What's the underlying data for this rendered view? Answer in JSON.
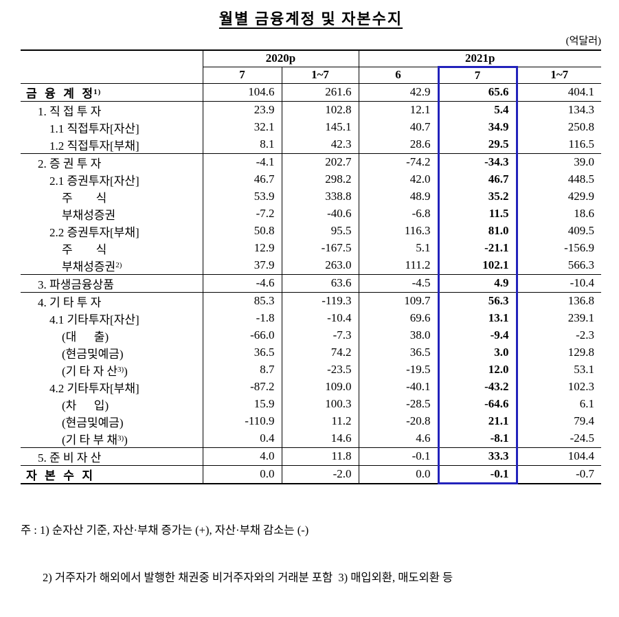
{
  "title": "월별 금융계정 및 자본수지",
  "unit_label": "(억달러)",
  "table": {
    "col_groups": [
      {
        "label": "2020p"
      },
      {
        "label": "2021p"
      }
    ],
    "sub_headers": [
      "7",
      "1~7",
      "6",
      "7",
      "1~7"
    ],
    "highlight_col": 3,
    "highlight_color": "#2222bb",
    "rows": [
      {
        "label": "금  융  계  정",
        "sup": "1)",
        "indent": 0,
        "bold": true,
        "line": true,
        "values": [
          "104.6",
          "261.6",
          "42.9",
          "65.6",
          "404.1"
        ]
      },
      {
        "label": "1. 직 접 투 자",
        "indent": 1,
        "values": [
          "23.9",
          "102.8",
          "12.1",
          "5.4",
          "134.3"
        ]
      },
      {
        "label": "1.1 직접투자[자산]",
        "indent": 2,
        "values": [
          "32.1",
          "145.1",
          "40.7",
          "34.9",
          "250.8"
        ]
      },
      {
        "label": "1.2 직접투자[부채]",
        "indent": 2,
        "line": true,
        "values": [
          "8.1",
          "42.3",
          "28.6",
          "29.5",
          "116.5"
        ]
      },
      {
        "label": "2. 증 권 투 자",
        "indent": 1,
        "values": [
          "-4.1",
          "202.7",
          "-74.2",
          "-34.3",
          "39.0"
        ]
      },
      {
        "label": "2.1 증권투자[자산]",
        "indent": 2,
        "values": [
          "46.7",
          "298.2",
          "42.0",
          "46.7",
          "448.5"
        ]
      },
      {
        "label": "주        식",
        "indent": 3,
        "values": [
          "53.9",
          "338.8",
          "48.9",
          "35.2",
          "429.9"
        ]
      },
      {
        "label": "부채성증권",
        "indent": 3,
        "values": [
          "-7.2",
          "-40.6",
          "-6.8",
          "11.5",
          "18.6"
        ]
      },
      {
        "label": "2.2 증권투자[부채]",
        "indent": 2,
        "values": [
          "50.8",
          "95.5",
          "116.3",
          "81.0",
          "409.5"
        ]
      },
      {
        "label": "주        식",
        "indent": 3,
        "values": [
          "12.9",
          "-167.5",
          "5.1",
          "-21.1",
          "-156.9"
        ]
      },
      {
        "label": "부채성증권",
        "sup": "2)",
        "indent": 3,
        "line": true,
        "values": [
          "37.9",
          "263.0",
          "111.2",
          "102.1",
          "566.3"
        ]
      },
      {
        "label": "3. 파생금융상품",
        "indent": 1,
        "line": true,
        "values": [
          "-4.6",
          "63.6",
          "-4.5",
          "4.9",
          "-10.4"
        ]
      },
      {
        "label": "4. 기 타 투 자",
        "indent": 1,
        "values": [
          "85.3",
          "-119.3",
          "109.7",
          "56.3",
          "136.8"
        ]
      },
      {
        "label": "4.1 기타투자[자산]",
        "indent": 2,
        "values": [
          "-1.8",
          "-10.4",
          "69.6",
          "13.1",
          "239.1"
        ]
      },
      {
        "label": "(대      출)",
        "indent": 3,
        "values": [
          "-66.0",
          "-7.3",
          "38.0",
          "-9.4",
          "-2.3"
        ]
      },
      {
        "label": "(현금및예금)",
        "indent": 3,
        "values": [
          "36.5",
          "74.2",
          "36.5",
          "3.0",
          "129.8"
        ]
      },
      {
        "label": "(기 타 자 산",
        "sup": "3)",
        "post": ")",
        "indent": 3,
        "values": [
          "8.7",
          "-23.5",
          "-19.5",
          "12.0",
          "53.1"
        ]
      },
      {
        "label": "4.2 기타투자[부채]",
        "indent": 2,
        "values": [
          "-87.2",
          "109.0",
          "-40.1",
          "-43.2",
          "102.3"
        ]
      },
      {
        "label": "(차      입)",
        "indent": 3,
        "values": [
          "15.9",
          "100.3",
          "-28.5",
          "-64.6",
          "6.1"
        ]
      },
      {
        "label": "(현금및예금)",
        "indent": 3,
        "values": [
          "-110.9",
          "11.2",
          "-20.8",
          "21.1",
          "79.4"
        ]
      },
      {
        "label": "(기 타 부 채",
        "sup": "3)",
        "post": ")",
        "indent": 3,
        "line": true,
        "values": [
          "0.4",
          "14.6",
          "4.6",
          "-8.1",
          "-24.5"
        ]
      },
      {
        "label": "5. 준 비 자 산",
        "indent": 1,
        "line": true,
        "values": [
          "4.0",
          "11.8",
          "-0.1",
          "33.3",
          "104.4"
        ]
      },
      {
        "label": "자  본  수  지",
        "indent": 0,
        "bold": true,
        "values": [
          "0.0",
          "-2.0",
          "0.0",
          "-0.1",
          "-0.7"
        ]
      }
    ]
  },
  "notes": [
    "주 : 1) 순자산 기준, 자산·부채 증가는 (+), 자산·부채 감소는 (-)",
    "2) 거주자가 해외에서 발행한 채권중 비거주자와의 거래분 포함  3) 매입외환, 매도외환 등"
  ]
}
